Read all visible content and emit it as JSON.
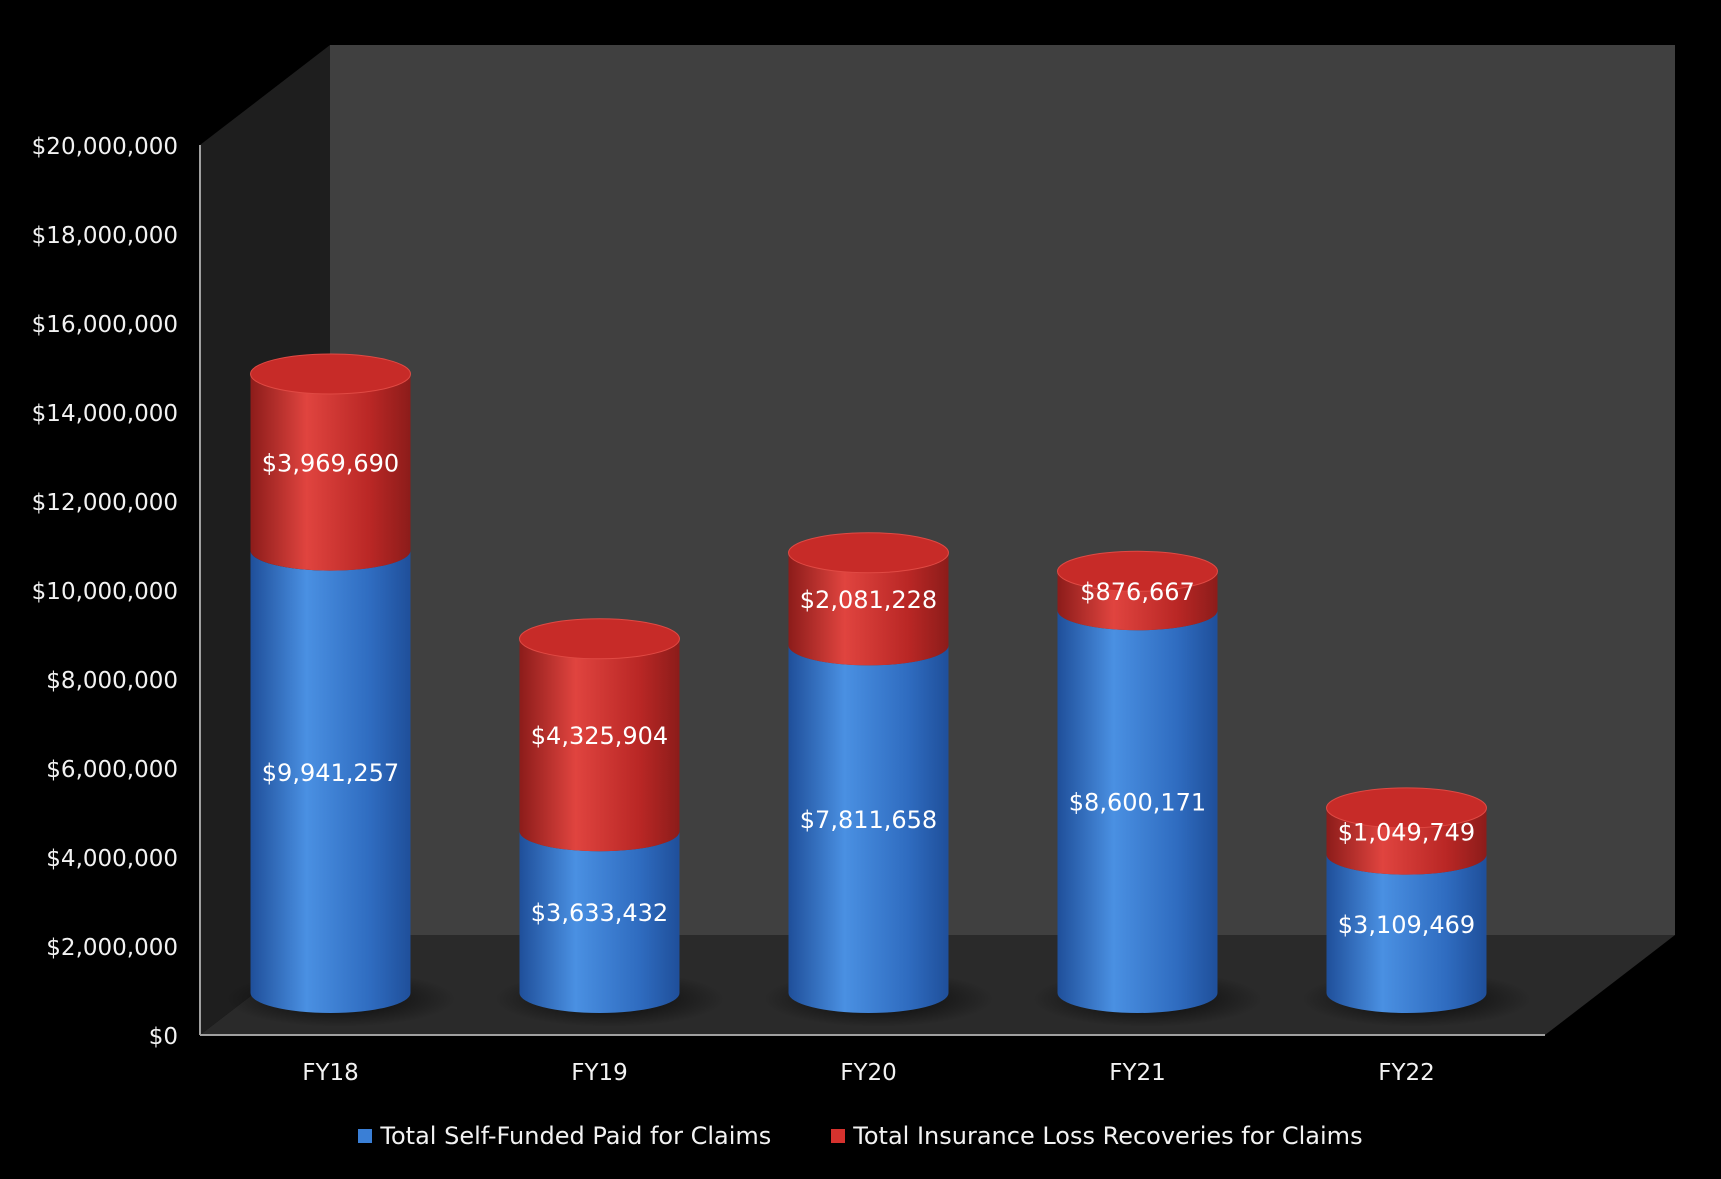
{
  "chart_data": {
    "type": "bar",
    "stacked": true,
    "style": "3d-cylinder",
    "categories": [
      "FY18",
      "FY19",
      "FY20",
      "FY21",
      "FY22"
    ],
    "series": [
      {
        "name": "Total Self-Funded Paid for Claims",
        "values": [
          9941257,
          3633432,
          7811658,
          8600171,
          3109469
        ],
        "labels": [
          "$9,941,257",
          "$3,633,432",
          "$7,811,658",
          "$8,600,171",
          "$3,109,469"
        ],
        "color": "#3a7fd6"
      },
      {
        "name": "Total Insurance Loss Recoveries for Claims",
        "values": [
          3969690,
          4325904,
          2081228,
          876667,
          1049749
        ],
        "labels": [
          "$3,969,690",
          "$4,325,904",
          "$2,081,228",
          "$876,667",
          "$1,049,749"
        ],
        "color": "#d6322e"
      }
    ],
    "ylim": [
      0,
      20000000
    ],
    "yticks": [
      0,
      2000000,
      4000000,
      6000000,
      8000000,
      10000000,
      12000000,
      14000000,
      16000000,
      18000000,
      20000000
    ],
    "ytick_labels": [
      "$0",
      "$2,000,000",
      "$4,000,000",
      "$6,000,000",
      "$8,000,000",
      "$10,000,000",
      "$12,000,000",
      "$14,000,000",
      "$16,000,000",
      "$18,000,000",
      "$20,000,000"
    ],
    "grid": false,
    "legend_position": "bottom",
    "background": "#000000",
    "wall_color": "#404040",
    "floor_color": "#2a2a2a"
  }
}
